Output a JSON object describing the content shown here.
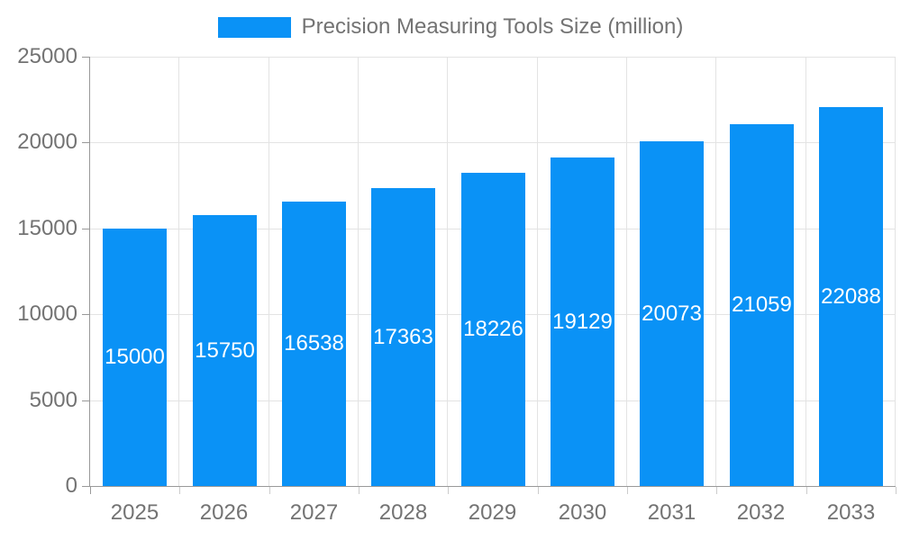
{
  "chart_data": {
    "type": "bar",
    "title": "Precision Measuring Tools Size (million)",
    "categories": [
      "2025",
      "2026",
      "2027",
      "2028",
      "2029",
      "2030",
      "2031",
      "2032",
      "2033"
    ],
    "values": [
      15000,
      15750,
      16538,
      17363,
      18226,
      19129,
      20073,
      21059,
      22088
    ],
    "xlabel": "",
    "ylabel": "",
    "ylim": [
      0,
      25000
    ],
    "yticks": [
      0,
      5000,
      10000,
      15000,
      20000,
      25000
    ],
    "ytick_labels": [
      "0",
      "5000",
      "10000",
      "15000",
      "20000",
      "25000"
    ],
    "grid": true,
    "legend_position": "top",
    "colors": {
      "bar": "#0a92f6",
      "bar_label_text": "#ffffff",
      "axis_line": "#999999",
      "grid_line": "#e3e3e3",
      "tick_text": "#737373",
      "x_tick_mark": "#cccccc",
      "legend_text": "#737373"
    }
  }
}
